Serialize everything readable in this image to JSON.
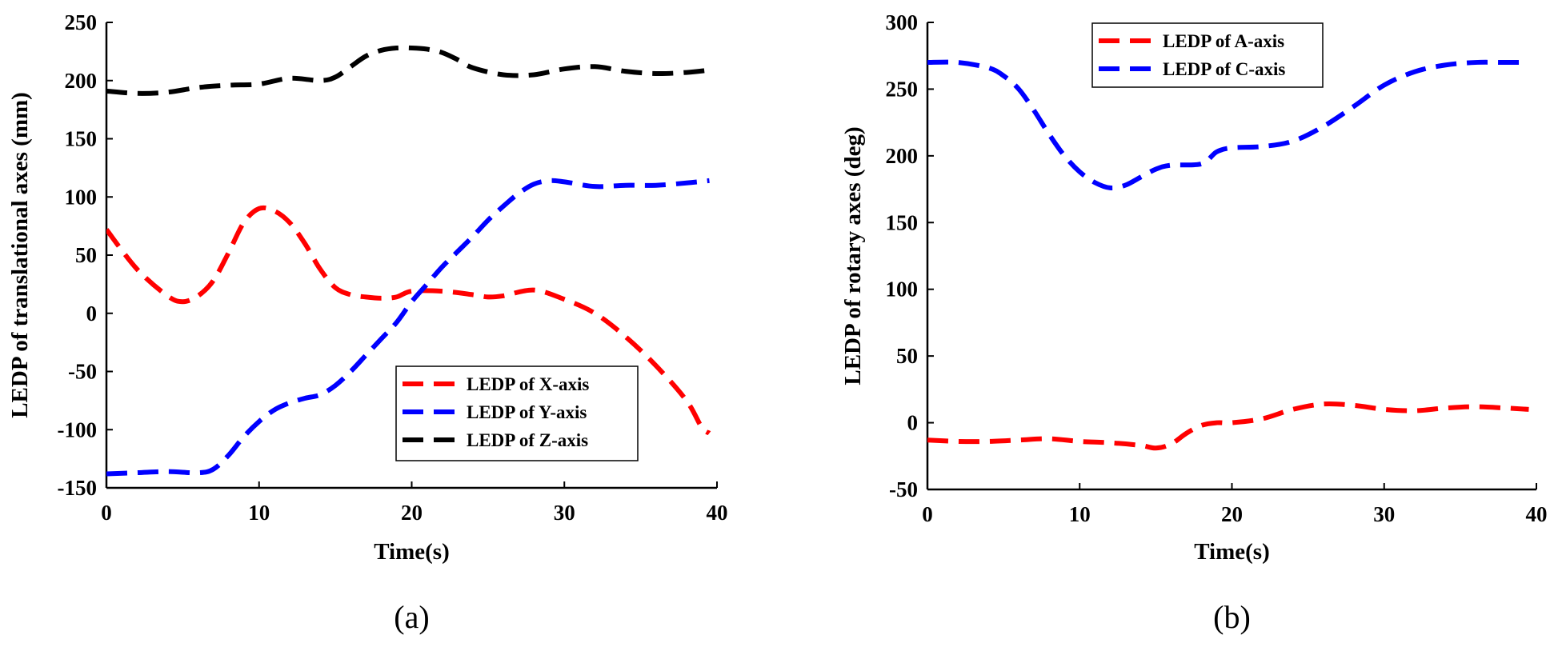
{
  "chart_data": [
    {
      "type": "line",
      "caption": "(a)",
      "title": "",
      "xlabel": "Time(s)",
      "ylabel": "LEDP of translational axes (mm)",
      "xlim": [
        0,
        40
      ],
      "ylim": [
        -150,
        250
      ],
      "xticks": [
        0,
        10,
        20,
        30,
        40
      ],
      "yticks": [
        -150,
        -100,
        -50,
        0,
        50,
        100,
        150,
        200,
        250
      ],
      "grid": false,
      "legend_position": "bottom-right",
      "series": [
        {
          "name": "LEDP of X-axis",
          "color": "#ff0000",
          "x": [
            0,
            2,
            4,
            5,
            6,
            7,
            8,
            9,
            10,
            11,
            12,
            13,
            14,
            15,
            16,
            17,
            18,
            19,
            20,
            22,
            24,
            25,
            26,
            28,
            30,
            32,
            34,
            36,
            38,
            39,
            39.5
          ],
          "y": [
            72,
            38,
            15,
            10,
            15,
            28,
            52,
            78,
            90,
            88,
            78,
            60,
            38,
            22,
            16,
            14,
            13,
            14,
            19,
            19,
            16,
            14,
            15,
            20,
            12,
            0,
            -20,
            -45,
            -75,
            -98,
            -103
          ]
        },
        {
          "name": "LEDP of Y-axis",
          "color": "#0000ff",
          "x": [
            0,
            2,
            4,
            6,
            7,
            8,
            9,
            10,
            11,
            12,
            13,
            14,
            15,
            16,
            17,
            18,
            19,
            20,
            21,
            22,
            23,
            24,
            25,
            26,
            27,
            28,
            29,
            30,
            32,
            34,
            36,
            38,
            39.5
          ],
          "y": [
            -138,
            -137,
            -136,
            -137,
            -134,
            -122,
            -106,
            -93,
            -83,
            -77,
            -73,
            -70,
            -62,
            -50,
            -36,
            -22,
            -8,
            10,
            25,
            40,
            53,
            66,
            80,
            92,
            103,
            111,
            114,
            113,
            109,
            110,
            110,
            112,
            114
          ]
        },
        {
          "name": "LEDP of Z-axis",
          "color": "#000000",
          "x": [
            0,
            2,
            4,
            6,
            8,
            10,
            12,
            14,
            15,
            16,
            17,
            18,
            19,
            20,
            21,
            22,
            23,
            24,
            26,
            28,
            30,
            32,
            34,
            36,
            38,
            39.5
          ],
          "y": [
            191,
            189,
            190,
            194,
            196,
            197,
            202,
            200,
            203,
            212,
            221,
            226,
            228,
            228,
            227,
            224,
            218,
            211,
            205,
            205,
            210,
            212,
            208,
            206,
            207,
            209
          ]
        }
      ]
    },
    {
      "type": "line",
      "caption": "(b)",
      "title": "",
      "xlabel": "Time(s)",
      "ylabel": "LEDP of rotary axes (deg)",
      "xlim": [
        0,
        40
      ],
      "ylim": [
        -50,
        300
      ],
      "xticks": [
        0,
        10,
        20,
        30,
        40
      ],
      "yticks": [
        -50,
        0,
        50,
        100,
        150,
        200,
        250,
        300
      ],
      "grid": false,
      "legend_position": "top-left",
      "series": [
        {
          "name": "LEDP of A-axis",
          "color": "#ff0000",
          "x": [
            0,
            2,
            4,
            6,
            8,
            10,
            12,
            14,
            15,
            16,
            17,
            18,
            19,
            20,
            22,
            24,
            26,
            28,
            30,
            32,
            34,
            36,
            38,
            39.5
          ],
          "y": [
            -13,
            -14,
            -14,
            -13,
            -12,
            -14,
            -15,
            -17,
            -19,
            -16,
            -8,
            -2,
            0,
            0,
            3,
            10,
            14,
            13,
            10,
            9,
            11,
            12,
            11,
            10
          ]
        },
        {
          "name": "LEDP of C-axis",
          "color": "#0000ff",
          "x": [
            0,
            2,
            4,
            5,
            6,
            7,
            8,
            9,
            10,
            11,
            12,
            13,
            14,
            15,
            16,
            18,
            19,
            20,
            22,
            24,
            26,
            28,
            30,
            32,
            34,
            36,
            38,
            39.5
          ],
          "y": [
            270,
            270,
            266,
            260,
            250,
            234,
            216,
            200,
            188,
            180,
            176,
            178,
            184,
            190,
            193,
            194,
            203,
            206,
            207,
            211,
            222,
            237,
            253,
            263,
            268,
            270,
            270,
            270
          ]
        }
      ]
    }
  ]
}
